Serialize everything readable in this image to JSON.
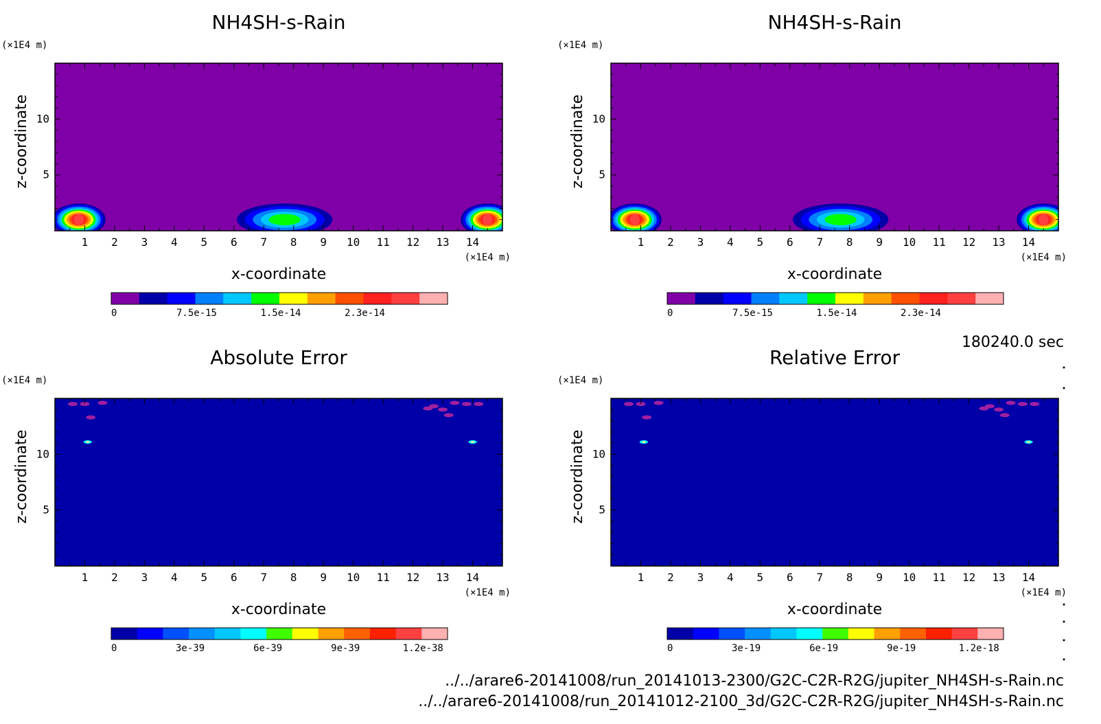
{
  "time_label": "180240.0 sec",
  "file_lines": [
    "../../arare6-20141008/run_20141013-2300/G2C-C2R-R2G/jupiter_NH4SH-s-Rain.nc",
    "../../arare6-20141008/run_20141012-2100_3d/G2C-C2R-R2G/jupiter_NH4SH-s-Rain.nc"
  ],
  "colors": {
    "purple": "#8000a8",
    "levels": [
      "#8000a8",
      "#0000a8",
      "#0000ff",
      "#0080ff",
      "#00c8ff",
      "#00ff00",
      "#ffff00",
      "#ffa000",
      "#ff5000",
      "#ff2020",
      "#ff4040",
      "#ffb0b0"
    ],
    "error_levels": [
      "#0000a8",
      "#0000ff",
      "#0050ff",
      "#0090ff",
      "#00c8ff",
      "#00ffff",
      "#40ff00",
      "#ffff00",
      "#ffa000",
      "#ff6000",
      "#ff2000",
      "#ff4040",
      "#ffb0b0"
    ]
  },
  "chart_data": [
    {
      "type": "heatmap",
      "title": "NH4SH-s-Rain",
      "xlabel": "x-coordinate",
      "ylabel": "z-coordinate",
      "x_unit": "(×1E4 m)",
      "y_unit": "(×1E4 m)",
      "xlim": [
        0,
        15
      ],
      "ylim": [
        0,
        15
      ],
      "x_ticks": [
        "1",
        "2",
        "3",
        "4",
        "5",
        "6",
        "7",
        "8",
        "9",
        "10",
        "11",
        "12",
        "13",
        "14"
      ],
      "y_ticks": [
        "5",
        "10"
      ],
      "colorbar_labels": [
        "0",
        "7.5e-15",
        "1.5e-14",
        "2.3e-14"
      ],
      "background": "purple",
      "cells": [
        {
          "cx": 0.8,
          "cz": 1.0,
          "rx": 1.8,
          "rz": 1.0,
          "peak_level": 10
        },
        {
          "cx": 7.7,
          "cz": 1.0,
          "rx": 3.2,
          "rz": 1.0,
          "peak_level": 5
        },
        {
          "cx": 14.5,
          "cz": 1.0,
          "rx": 1.8,
          "rz": 1.0,
          "peak_level": 10
        }
      ]
    },
    {
      "type": "heatmap",
      "title": "NH4SH-s-Rain",
      "xlabel": "x-coordinate",
      "ylabel": "z-coordinate",
      "x_unit": "(×1E4 m)",
      "y_unit": "(×1E4 m)",
      "xlim": [
        0,
        15
      ],
      "ylim": [
        0,
        15
      ],
      "x_ticks": [
        "1",
        "2",
        "3",
        "4",
        "5",
        "6",
        "7",
        "8",
        "9",
        "10",
        "11",
        "12",
        "13",
        "14"
      ],
      "y_ticks": [
        "5",
        "10"
      ],
      "colorbar_labels": [
        "0",
        "7.5e-15",
        "1.5e-14",
        "2.3e-14"
      ],
      "background": "purple",
      "cells": [
        {
          "cx": 0.8,
          "cz": 1.0,
          "rx": 1.8,
          "rz": 1.0,
          "peak_level": 10
        },
        {
          "cx": 7.7,
          "cz": 1.0,
          "rx": 3.2,
          "rz": 1.0,
          "peak_level": 5
        },
        {
          "cx": 14.5,
          "cz": 1.0,
          "rx": 1.8,
          "rz": 1.0,
          "peak_level": 10
        }
      ]
    },
    {
      "type": "heatmap",
      "title": "Absolute Error",
      "xlabel": "x-coordinate",
      "ylabel": "z-coordinate",
      "x_unit": "(×1E4 m)",
      "y_unit": "(×1E4 m)",
      "xlim": [
        0,
        15
      ],
      "ylim": [
        0,
        15
      ],
      "x_ticks": [
        "1",
        "2",
        "3",
        "4",
        "5",
        "6",
        "7",
        "8",
        "9",
        "10",
        "11",
        "12",
        "13",
        "14"
      ],
      "y_ticks": [
        "5",
        "10"
      ],
      "colorbar_labels": [
        "0",
        "3e-39",
        "6e-39",
        "9e-39",
        "1.2e-38"
      ],
      "background": "darkblue",
      "specks": [
        {
          "x": 1.0,
          "z": 14.5
        },
        {
          "x": 1.6,
          "z": 14.6
        },
        {
          "x": 0.6,
          "z": 14.5
        },
        {
          "x": 1.2,
          "z": 13.3
        },
        {
          "x": 12.7,
          "z": 14.3
        },
        {
          "x": 13.0,
          "z": 14.0
        },
        {
          "x": 13.4,
          "z": 14.6
        },
        {
          "x": 13.8,
          "z": 14.5
        },
        {
          "x": 12.5,
          "z": 14.1
        },
        {
          "x": 13.2,
          "z": 13.5
        },
        {
          "x": 14.2,
          "z": 14.5
        }
      ],
      "hot": [
        {
          "x": 1.1,
          "z": 11.1
        },
        {
          "x": 14.0,
          "z": 11.1
        }
      ]
    },
    {
      "type": "heatmap",
      "title": "Relative Error",
      "xlabel": "x-coordinate",
      "ylabel": "z-coordinate",
      "x_unit": "(×1E4 m)",
      "y_unit": "(×1E4 m)",
      "xlim": [
        0,
        15
      ],
      "ylim": [
        0,
        15
      ],
      "x_ticks": [
        "1",
        "2",
        "3",
        "4",
        "5",
        "6",
        "7",
        "8",
        "9",
        "10",
        "11",
        "12",
        "13",
        "14"
      ],
      "y_ticks": [
        "5",
        "10"
      ],
      "colorbar_labels": [
        "0",
        "3e-19",
        "6e-19",
        "9e-19",
        "1.2e-18"
      ],
      "background": "darkblue",
      "specks": [
        {
          "x": 1.0,
          "z": 14.5
        },
        {
          "x": 1.6,
          "z": 14.6
        },
        {
          "x": 0.6,
          "z": 14.5
        },
        {
          "x": 1.2,
          "z": 13.3
        },
        {
          "x": 12.7,
          "z": 14.3
        },
        {
          "x": 13.0,
          "z": 14.0
        },
        {
          "x": 13.4,
          "z": 14.6
        },
        {
          "x": 13.8,
          "z": 14.5
        },
        {
          "x": 12.5,
          "z": 14.1
        },
        {
          "x": 13.2,
          "z": 13.5
        },
        {
          "x": 14.2,
          "z": 14.5
        }
      ],
      "hot": [
        {
          "x": 1.1,
          "z": 11.1
        },
        {
          "x": 14.0,
          "z": 11.1
        }
      ]
    }
  ]
}
